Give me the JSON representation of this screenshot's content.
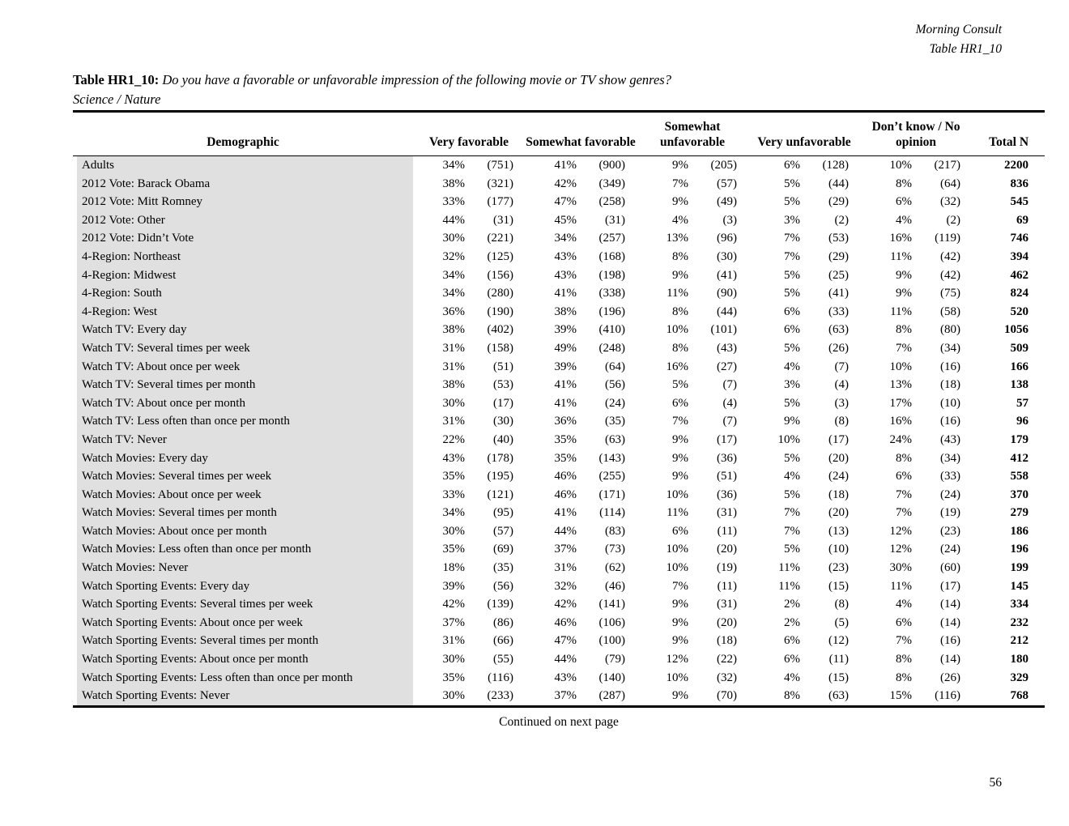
{
  "document": {
    "letterhead": {
      "line1": "Morning Consult",
      "line2": "Table HR1_10"
    },
    "title": {
      "label": "Table HR1_10:",
      "question": "Do you have a favorable or unfavorable impression of the following movie or TV show genres?",
      "subtitle": "Science / Nature"
    },
    "footer": {
      "continued": "Continued on next page",
      "page_number": "56"
    }
  },
  "table": {
    "column_headers": [
      "Demographic",
      "Very favorable",
      "Somewhat favorable",
      "Somewhat unfavorable",
      "Very unfavorable",
      "Don’t know / No opinion",
      "Total N"
    ],
    "rows": [
      {
        "cells": [
          "Adults",
          "34%",
          "(751)",
          "41%",
          "(900)",
          "9%",
          "(205)",
          "6%",
          "(128)",
          "10%",
          "(217)",
          "2200"
        ]
      },
      {
        "cells": [
          "2012 Vote: Barack Obama",
          "38%",
          "(321)",
          "42%",
          "(349)",
          "7%",
          "(57)",
          "5%",
          "(44)",
          "8%",
          "(64)",
          "836"
        ]
      },
      {
        "cells": [
          "2012 Vote: Mitt Romney",
          "33%",
          "(177)",
          "47%",
          "(258)",
          "9%",
          "(49)",
          "5%",
          "(29)",
          "6%",
          "(32)",
          "545"
        ]
      },
      {
        "cells": [
          "2012 Vote: Other",
          "44%",
          "(31)",
          "45%",
          "(31)",
          "4%",
          "(3)",
          "3%",
          "(2)",
          "4%",
          "(2)",
          "69"
        ]
      },
      {
        "cells": [
          "2012 Vote: Didn’t Vote",
          "30%",
          "(221)",
          "34%",
          "(257)",
          "13%",
          "(96)",
          "7%",
          "(53)",
          "16%",
          "(119)",
          "746"
        ]
      },
      {
        "cells": [
          "4-Region: Northeast",
          "32%",
          "(125)",
          "43%",
          "(168)",
          "8%",
          "(30)",
          "7%",
          "(29)",
          "11%",
          "(42)",
          "394"
        ]
      },
      {
        "cells": [
          "4-Region: Midwest",
          "34%",
          "(156)",
          "43%",
          "(198)",
          "9%",
          "(41)",
          "5%",
          "(25)",
          "9%",
          "(42)",
          "462"
        ]
      },
      {
        "cells": [
          "4-Region: South",
          "34%",
          "(280)",
          "41%",
          "(338)",
          "11%",
          "(90)",
          "5%",
          "(41)",
          "9%",
          "(75)",
          "824"
        ]
      },
      {
        "cells": [
          "4-Region: West",
          "36%",
          "(190)",
          "38%",
          "(196)",
          "8%",
          "(44)",
          "6%",
          "(33)",
          "11%",
          "(58)",
          "520"
        ]
      },
      {
        "cells": [
          "Watch TV: Every day",
          "38%",
          "(402)",
          "39%",
          "(410)",
          "10%",
          "(101)",
          "6%",
          "(63)",
          "8%",
          "(80)",
          "1056"
        ]
      },
      {
        "cells": [
          "Watch TV: Several times per week",
          "31%",
          "(158)",
          "49%",
          "(248)",
          "8%",
          "(43)",
          "5%",
          "(26)",
          "7%",
          "(34)",
          "509"
        ]
      },
      {
        "cells": [
          "Watch TV: About once per week",
          "31%",
          "(51)",
          "39%",
          "(64)",
          "16%",
          "(27)",
          "4%",
          "(7)",
          "10%",
          "(16)",
          "166"
        ]
      },
      {
        "cells": [
          "Watch TV: Several times per month",
          "38%",
          "(53)",
          "41%",
          "(56)",
          "5%",
          "(7)",
          "3%",
          "(4)",
          "13%",
          "(18)",
          "138"
        ]
      },
      {
        "cells": [
          "Watch TV: About once per month",
          "30%",
          "(17)",
          "41%",
          "(24)",
          "6%",
          "(4)",
          "5%",
          "(3)",
          "17%",
          "(10)",
          "57"
        ]
      },
      {
        "cells": [
          "Watch TV: Less often than once per month",
          "31%",
          "(30)",
          "36%",
          "(35)",
          "7%",
          "(7)",
          "9%",
          "(8)",
          "16%",
          "(16)",
          "96"
        ]
      },
      {
        "cells": [
          "Watch TV: Never",
          "22%",
          "(40)",
          "35%",
          "(63)",
          "9%",
          "(17)",
          "10%",
          "(17)",
          "24%",
          "(43)",
          "179"
        ]
      },
      {
        "cells": [
          "Watch Movies: Every day",
          "43%",
          "(178)",
          "35%",
          "(143)",
          "9%",
          "(36)",
          "5%",
          "(20)",
          "8%",
          "(34)",
          "412"
        ]
      },
      {
        "cells": [
          "Watch Movies: Several times per week",
          "35%",
          "(195)",
          "46%",
          "(255)",
          "9%",
          "(51)",
          "4%",
          "(24)",
          "6%",
          "(33)",
          "558"
        ]
      },
      {
        "cells": [
          "Watch Movies: About once per week",
          "33%",
          "(121)",
          "46%",
          "(171)",
          "10%",
          "(36)",
          "5%",
          "(18)",
          "7%",
          "(24)",
          "370"
        ]
      },
      {
        "cells": [
          "Watch Movies: Several times per month",
          "34%",
          "(95)",
          "41%",
          "(114)",
          "11%",
          "(31)",
          "7%",
          "(20)",
          "7%",
          "(19)",
          "279"
        ]
      },
      {
        "cells": [
          "Watch Movies: About once per month",
          "30%",
          "(57)",
          "44%",
          "(83)",
          "6%",
          "(11)",
          "7%",
          "(13)",
          "12%",
          "(23)",
          "186"
        ]
      },
      {
        "cells": [
          "Watch Movies: Less often than once per month",
          "35%",
          "(69)",
          "37%",
          "(73)",
          "10%",
          "(20)",
          "5%",
          "(10)",
          "12%",
          "(24)",
          "196"
        ]
      },
      {
        "cells": [
          "Watch Movies: Never",
          "18%",
          "(35)",
          "31%",
          "(62)",
          "10%",
          "(19)",
          "11%",
          "(23)",
          "30%",
          "(60)",
          "199"
        ]
      },
      {
        "cells": [
          "Watch Sporting Events: Every day",
          "39%",
          "(56)",
          "32%",
          "(46)",
          "7%",
          "(11)",
          "11%",
          "(15)",
          "11%",
          "(17)",
          "145"
        ]
      },
      {
        "cells": [
          "Watch Sporting Events: Several times per week",
          "42%",
          "(139)",
          "42%",
          "(141)",
          "9%",
          "(31)",
          "2%",
          "(8)",
          "4%",
          "(14)",
          "334"
        ]
      },
      {
        "cells": [
          "Watch Sporting Events: About once per week",
          "37%",
          "(86)",
          "46%",
          "(106)",
          "9%",
          "(20)",
          "2%",
          "(5)",
          "6%",
          "(14)",
          "232"
        ]
      },
      {
        "cells": [
          "Watch Sporting Events: Several times per month",
          "31%",
          "(66)",
          "47%",
          "(100)",
          "9%",
          "(18)",
          "6%",
          "(12)",
          "7%",
          "(16)",
          "212"
        ]
      },
      {
        "cells": [
          "Watch Sporting Events: About once per month",
          "30%",
          "(55)",
          "44%",
          "(79)",
          "12%",
          "(22)",
          "6%",
          "(11)",
          "8%",
          "(14)",
          "180"
        ]
      },
      {
        "cells": [
          "Watch Sporting Events: Less often than once per month",
          "35%",
          "(116)",
          "43%",
          "(140)",
          "10%",
          "(32)",
          "4%",
          "(15)",
          "8%",
          "(26)",
          "329"
        ]
      },
      {
        "cells": [
          "Watch Sporting Events: Never",
          "30%",
          "(233)",
          "37%",
          "(287)",
          "9%",
          "(70)",
          "8%",
          "(63)",
          "15%",
          "(116)",
          "768"
        ]
      }
    ]
  }
}
